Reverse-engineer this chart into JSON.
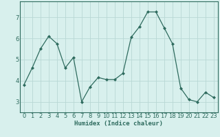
{
  "x": [
    0,
    1,
    2,
    3,
    4,
    5,
    6,
    7,
    8,
    9,
    10,
    11,
    12,
    13,
    14,
    15,
    16,
    17,
    18,
    19,
    20,
    21,
    22,
    23
  ],
  "y": [
    3.8,
    4.6,
    5.5,
    6.1,
    5.75,
    4.6,
    5.1,
    3.0,
    3.7,
    4.15,
    4.05,
    4.05,
    4.35,
    6.05,
    6.55,
    7.25,
    7.25,
    6.5,
    5.75,
    3.65,
    3.1,
    3.0,
    3.45,
    3.2
  ],
  "line_color": "#2e6b5e",
  "marker": "D",
  "marker_size": 2.0,
  "bg_color": "#d8f0ed",
  "grid_color": "#b8d8d4",
  "xlabel": "Humidex (Indice chaleur)",
  "xlim": [
    -0.5,
    23.5
  ],
  "ylim": [
    2.5,
    7.75
  ],
  "yticks": [
    3,
    4,
    5,
    6,
    7
  ],
  "xticks": [
    0,
    1,
    2,
    3,
    4,
    5,
    6,
    7,
    8,
    9,
    10,
    11,
    12,
    13,
    14,
    15,
    16,
    17,
    18,
    19,
    20,
    21,
    22,
    23
  ],
  "xlabel_fontsize": 6.5,
  "tick_fontsize": 6.0,
  "axis_color": "#2e6b5e",
  "linewidth": 0.9
}
